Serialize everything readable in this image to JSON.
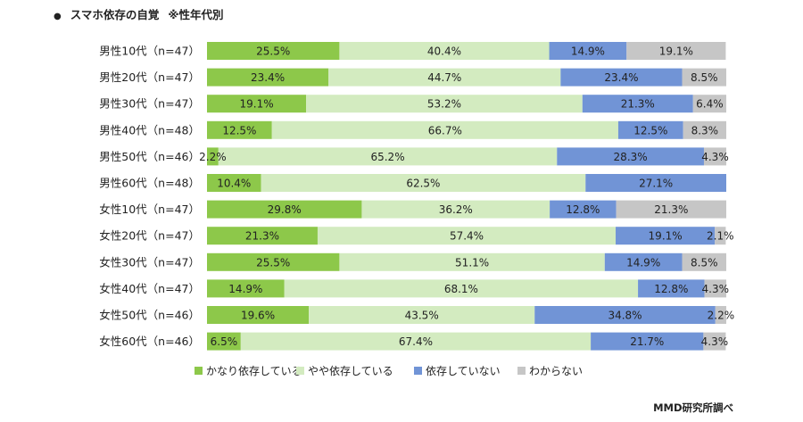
{
  "title": "スマホ依存の自覚",
  "subtitle": "※性年代別",
  "credit": "MMD研究所調べ",
  "colors": {
    "かなり依存している": "#8dc84a",
    "やや依存している": "#d3ebc0",
    "依存していない": "#7194d6",
    "わからない": "#c6c6c6"
  },
  "chart_data": {
    "type": "bar",
    "orientation": "horizontal",
    "stacked": true,
    "percent_stacked": true,
    "xlim": [
      0,
      100
    ],
    "grid": false,
    "legend_position": "bottom",
    "categories": [
      "男性10代（n=47）",
      "男性20代（n=47）",
      "男性30代（n=47）",
      "男性40代（n=48）",
      "男性50代（n=46）",
      "男性60代（n=48）",
      "女性10代（n=47）",
      "女性20代（n=47）",
      "女性30代（n=47）",
      "女性40代（n=47）",
      "女性50代（n=46）",
      "女性60代（n=46）"
    ],
    "series": [
      {
        "name": "かなり依存している",
        "values": [
          25.5,
          23.4,
          19.1,
          12.5,
          2.2,
          10.4,
          29.8,
          21.3,
          25.5,
          14.9,
          19.6,
          6.5
        ]
      },
      {
        "name": "やや依存している",
        "values": [
          40.4,
          44.7,
          53.2,
          66.7,
          65.2,
          62.5,
          36.2,
          57.4,
          51.1,
          68.1,
          43.5,
          67.4
        ]
      },
      {
        "name": "依存していない",
        "values": [
          14.9,
          23.4,
          21.3,
          12.5,
          28.3,
          27.1,
          12.8,
          19.1,
          14.9,
          12.8,
          34.8,
          21.7
        ]
      },
      {
        "name": "わからない",
        "values": [
          19.1,
          8.5,
          6.4,
          8.3,
          4.3,
          null,
          21.3,
          2.1,
          8.5,
          4.3,
          2.2,
          4.3
        ]
      }
    ],
    "labels": [
      [
        "25.5%",
        "23.4%",
        "19.1%",
        "12.5%",
        "2.2%",
        "10.4%",
        "29.8%",
        "21.3%",
        "25.5%",
        "14.9%",
        "19.6%",
        "6.5%"
      ],
      [
        "40.4%",
        "44.7%",
        "53.2%",
        "66.7%",
        "65.2%",
        "62.5%",
        "36.2%",
        "57.4%",
        "51.1%",
        "68.1%",
        "43.5%",
        "67.4%"
      ],
      [
        "14.9%",
        "23.4%",
        "21.3%",
        "12.5%",
        "28.3%",
        "27.1%",
        "12.8%",
        "19.1%",
        "14.9%",
        "12.8%",
        "34.8%",
        "21.7%"
      ],
      [
        "19.1%",
        "8.5%",
        "6.4%",
        "8.3%",
        "4.3%",
        "",
        "21.3%",
        "2.1%",
        "8.5%",
        "4.3%",
        "2.2%",
        "4.3%"
      ]
    ]
  }
}
